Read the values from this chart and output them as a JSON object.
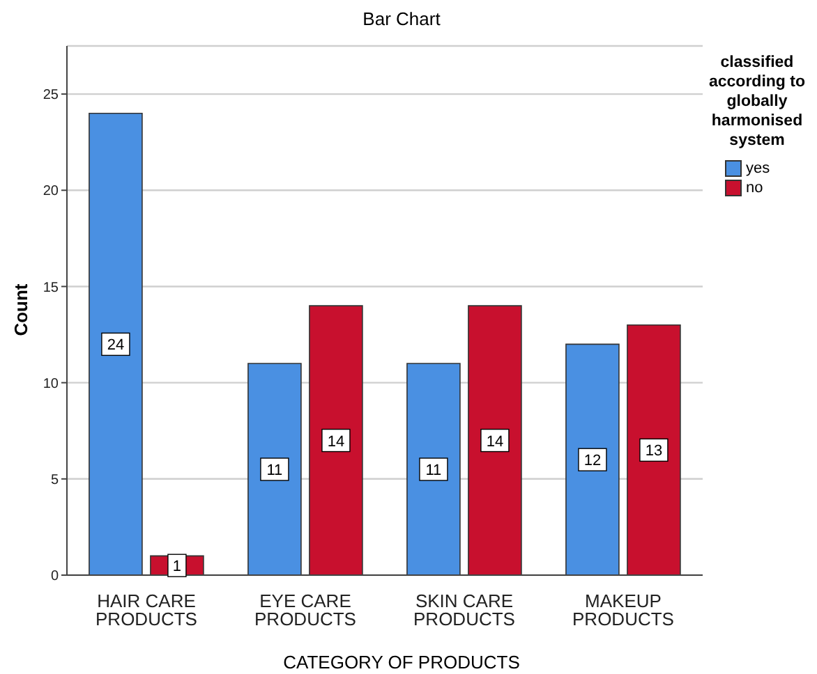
{
  "chart_data": {
    "type": "bar",
    "title": "Bar Chart",
    "xlabel": "CATEGORY OF PRODUCTS",
    "ylabel": "Count",
    "legend_title": "classified according to globally harmonised system",
    "categories": [
      "HAIR CARE PRODUCTS",
      "EYE CARE PRODUCTS",
      "SKIN CARE PRODUCTS",
      "MAKEUP PRODUCTS"
    ],
    "series": [
      {
        "name": "yes",
        "color": "#4a90e2",
        "values": [
          24,
          11,
          11,
          12
        ]
      },
      {
        "name": "no",
        "color": "#c8102e",
        "values": [
          1,
          14,
          14,
          13
        ]
      }
    ],
    "ylim": [
      0,
      27.5
    ],
    "yticks": [
      0,
      5,
      10,
      15,
      20,
      25
    ],
    "grid": "y",
    "legend": "top right",
    "data_labels": true
  }
}
